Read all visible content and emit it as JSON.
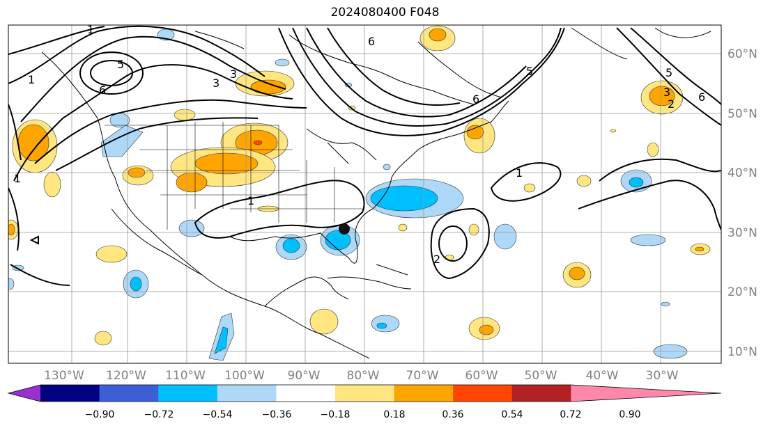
{
  "title": "2024080400 F048",
  "map": {
    "lon_ticks": [
      "130°W",
      "120°W",
      "110°W",
      "100°W",
      "90°W",
      "80°W",
      "70°W",
      "60°W",
      "50°W",
      "40°W",
      "30°W"
    ],
    "lat_ticks": [
      "60°N",
      "50°N",
      "40°N",
      "30°N",
      "20°N",
      "10°N"
    ],
    "extent": {
      "lon": [
        -136,
        -15
      ],
      "lat": [
        8,
        65
      ]
    },
    "marker": {
      "name": "storm-center",
      "lon": -84.7,
      "lat": 30.6
    }
  },
  "contour_labels": [
    "1",
    "1",
    "1",
    "1",
    "1",
    "2",
    "3",
    "3",
    "5",
    "5",
    "5",
    "6",
    "6",
    "6",
    "6",
    "2",
    "3"
  ],
  "colorbar": {
    "ticks": [
      "−0.90",
      "−0.72",
      "−0.54",
      "−0.36",
      "−0.18",
      "0.18",
      "0.36",
      "0.54",
      "0.72",
      "0.90"
    ],
    "colors": [
      "#9b30d0",
      "#000080",
      "#3d5fd6",
      "#00bfff",
      "#add8f7",
      "#ffffff",
      "#ffe680",
      "#ffa500",
      "#ff4500",
      "#b22222",
      "#ff88aa"
    ]
  }
}
